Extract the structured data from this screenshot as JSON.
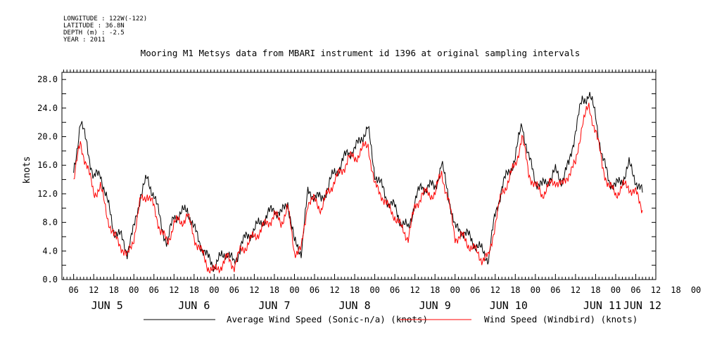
{
  "header": {
    "meta": [
      "LONGITUDE : 122W(-122)",
      "LATITUDE : 36.8N",
      "DEPTH (m) : -2.5",
      "YEAR : 2011"
    ]
  },
  "chart_data": {
    "type": "line",
    "title": "Mooring M1 Metsys data from MBARI instrument id 1396 at original sampling intervals",
    "ylabel": "knots",
    "xlabel": "",
    "ylim": [
      0,
      29
    ],
    "xlim_hours": [
      -3.5,
      174
    ],
    "yticks": [
      "0.0",
      "4.0",
      "8.0",
      "12.0",
      "16.0",
      "20.0",
      "24.0",
      "28.0"
    ],
    "hour_tick_labels": [
      "06",
      "12",
      "18",
      "00",
      "06",
      "12",
      "18",
      "00",
      "06",
      "12",
      "18",
      "00",
      "06",
      "12",
      "18",
      "00",
      "06",
      "12",
      "18",
      "00",
      "06",
      "12",
      "18",
      "00",
      "06",
      "12",
      "18",
      "00",
      "06",
      "12",
      "18",
      "00"
    ],
    "day_labels": [
      "JUN 5",
      "JUN 6",
      "JUN 7",
      "JUN 8",
      "JUN 9",
      "JUN 10",
      "JUN 11",
      "JUN 12"
    ],
    "grid": false,
    "legend_position": "bottom",
    "series": [
      {
        "name": "Average Wind Speed (Sonic-n/a) (knots)",
        "color": "#000000",
        "hours": [
          0,
          2,
          4,
          6,
          8,
          10,
          12,
          14,
          16,
          18,
          20,
          22,
          24,
          26,
          28,
          30,
          32,
          34,
          36,
          38,
          40,
          42,
          44,
          46,
          48,
          50,
          52,
          54,
          56,
          58,
          60,
          62,
          64,
          66,
          68,
          70,
          72,
          74,
          76,
          78,
          80,
          82,
          84,
          86,
          88,
          90,
          92,
          94,
          96,
          98,
          100,
          102,
          104,
          106,
          108,
          110,
          112,
          114,
          116,
          118,
          120,
          122,
          124,
          126,
          128,
          130,
          132,
          134,
          136,
          138,
          140,
          142,
          144,
          146,
          148,
          150,
          152,
          154,
          156,
          158,
          160,
          162,
          164,
          166,
          168,
          170
        ],
        "values": [
          15,
          22,
          19,
          14,
          15,
          11,
          7,
          6,
          4,
          7,
          12,
          14,
          12,
          8,
          5,
          9,
          9,
          10,
          7,
          5,
          3,
          2,
          3,
          4,
          2,
          5,
          6,
          7,
          8,
          9,
          10,
          9,
          11,
          5,
          4,
          12,
          12,
          11,
          13,
          15,
          16,
          18,
          18,
          20,
          21,
          15,
          13,
          11,
          10,
          8,
          7,
          11,
          13,
          13,
          13,
          16,
          12,
          7,
          7,
          6,
          5,
          4,
          3,
          9,
          13,
          15,
          17,
          22,
          17,
          14,
          13,
          14,
          15,
          14,
          16,
          21,
          25,
          26,
          23,
          17,
          14,
          13,
          14,
          16,
          14,
          12
        ]
      },
      {
        "name": "Wind Speed (Windbird) (knots)",
        "color": "#ff0000",
        "hours": [
          0,
          2,
          4,
          6,
          8,
          10,
          12,
          14,
          16,
          18,
          20,
          22,
          24,
          26,
          28,
          30,
          32,
          34,
          36,
          38,
          40,
          42,
          44,
          46,
          48,
          50,
          52,
          54,
          56,
          58,
          60,
          62,
          64,
          66,
          68,
          70,
          72,
          74,
          76,
          78,
          80,
          82,
          84,
          86,
          88,
          90,
          92,
          94,
          96,
          98,
          100,
          102,
          104,
          106,
          108,
          110,
          112,
          114,
          116,
          118,
          120,
          122,
          124,
          126,
          128,
          130,
          132,
          134,
          136,
          138,
          140,
          142,
          144,
          146,
          148,
          150,
          152,
          154,
          156,
          158,
          160,
          162,
          164,
          166,
          168,
          170
        ],
        "values": [
          14,
          19,
          16,
          12,
          13,
          9,
          6,
          5,
          3,
          6,
          11,
          12,
          10,
          7,
          5,
          8,
          8,
          9,
          6,
          4,
          2,
          1,
          2,
          3,
          2,
          4,
          5,
          6,
          7,
          8,
          9,
          8,
          10,
          4,
          4,
          11,
          11,
          10,
          12,
          14,
          15,
          17,
          17,
          18,
          19,
          13,
          12,
          10,
          9,
          7,
          6,
          10,
          12,
          12,
          12,
          15,
          11,
          6,
          6,
          5,
          4,
          3,
          3,
          8,
          12,
          14,
          16,
          20,
          15,
          13,
          12,
          13,
          14,
          13,
          15,
          16,
          22,
          24,
          21,
          16,
          13,
          12,
          13,
          13,
          12,
          10
        ]
      }
    ]
  }
}
